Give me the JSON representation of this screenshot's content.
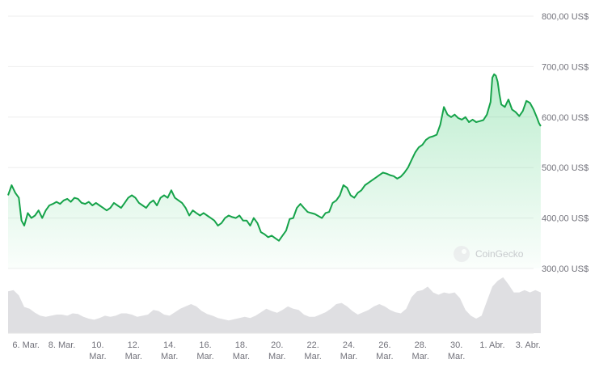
{
  "chart_data": {
    "type": "area",
    "y_tick_labels": [
      "800,00 US$",
      "700,00 US$",
      "600,00 US$",
      "500,00 US$",
      "400,00 US$",
      "300,00 US$"
    ],
    "y_ticks": [
      800,
      700,
      600,
      500,
      400,
      300
    ],
    "ylim": [
      300,
      800
    ],
    "x_tick_labels": [
      [
        "6. Mar."
      ],
      [
        "8. Mar."
      ],
      [
        "10.",
        "Mar."
      ],
      [
        "12.",
        "Mar."
      ],
      [
        "14.",
        "Mar."
      ],
      [
        "16.",
        "Mar."
      ],
      [
        "18.",
        "Mar."
      ],
      [
        "20.",
        "Mar."
      ],
      [
        "22.",
        "Mar."
      ],
      [
        "24.",
        "Mar."
      ],
      [
        "26.",
        "Mar."
      ],
      [
        "28.",
        "Mar."
      ],
      [
        "30.",
        "Mar."
      ],
      [
        "1. Abr."
      ],
      [
        "3. Abr."
      ]
    ],
    "x_tick_positions": [
      6,
      8,
      10,
      12,
      14,
      16,
      18,
      20,
      22,
      24,
      26,
      28,
      30,
      32,
      34
    ],
    "xlim": [
      5.0,
      34.3
    ],
    "watermark": "CoinGecko",
    "line_color": "#16a34a",
    "fill_color": "#22c55e",
    "grid": true,
    "series": [
      {
        "points": [
          [
            5.0,
            445
          ],
          [
            5.2,
            465
          ],
          [
            5.4,
            450
          ],
          [
            5.6,
            440
          ],
          [
            5.75,
            395
          ],
          [
            5.9,
            385
          ],
          [
            6.1,
            410
          ],
          [
            6.3,
            400
          ],
          [
            6.5,
            405
          ],
          [
            6.7,
            415
          ],
          [
            6.9,
            400
          ],
          [
            7.1,
            415
          ],
          [
            7.3,
            425
          ],
          [
            7.5,
            428
          ],
          [
            7.7,
            432
          ],
          [
            7.9,
            428
          ],
          [
            8.1,
            435
          ],
          [
            8.3,
            438
          ],
          [
            8.5,
            432
          ],
          [
            8.7,
            440
          ],
          [
            8.9,
            438
          ],
          [
            9.1,
            430
          ],
          [
            9.3,
            428
          ],
          [
            9.5,
            432
          ],
          [
            9.7,
            425
          ],
          [
            9.9,
            430
          ],
          [
            10.1,
            425
          ],
          [
            10.3,
            420
          ],
          [
            10.5,
            415
          ],
          [
            10.7,
            420
          ],
          [
            10.9,
            430
          ],
          [
            11.1,
            425
          ],
          [
            11.3,
            420
          ],
          [
            11.5,
            430
          ],
          [
            11.7,
            440
          ],
          [
            11.9,
            445
          ],
          [
            12.1,
            440
          ],
          [
            12.3,
            430
          ],
          [
            12.5,
            425
          ],
          [
            12.7,
            420
          ],
          [
            12.9,
            430
          ],
          [
            13.1,
            435
          ],
          [
            13.3,
            425
          ],
          [
            13.5,
            440
          ],
          [
            13.7,
            445
          ],
          [
            13.9,
            440
          ],
          [
            14.1,
            455
          ],
          [
            14.3,
            440
          ],
          [
            14.5,
            435
          ],
          [
            14.7,
            430
          ],
          [
            14.9,
            420
          ],
          [
            15.1,
            405
          ],
          [
            15.3,
            415
          ],
          [
            15.5,
            410
          ],
          [
            15.7,
            405
          ],
          [
            15.9,
            410
          ],
          [
            16.1,
            405
          ],
          [
            16.3,
            400
          ],
          [
            16.5,
            395
          ],
          [
            16.7,
            385
          ],
          [
            16.9,
            390
          ],
          [
            17.1,
            400
          ],
          [
            17.3,
            405
          ],
          [
            17.5,
            402
          ],
          [
            17.7,
            400
          ],
          [
            17.9,
            405
          ],
          [
            18.1,
            395
          ],
          [
            18.3,
            395
          ],
          [
            18.5,
            385
          ],
          [
            18.7,
            400
          ],
          [
            18.9,
            390
          ],
          [
            19.1,
            372
          ],
          [
            19.3,
            368
          ],
          [
            19.5,
            362
          ],
          [
            19.7,
            365
          ],
          [
            19.9,
            360
          ],
          [
            20.1,
            355
          ],
          [
            20.3,
            365
          ],
          [
            20.5,
            375
          ],
          [
            20.7,
            398
          ],
          [
            20.9,
            400
          ],
          [
            21.1,
            420
          ],
          [
            21.3,
            428
          ],
          [
            21.5,
            420
          ],
          [
            21.7,
            412
          ],
          [
            21.9,
            410
          ],
          [
            22.1,
            408
          ],
          [
            22.3,
            404
          ],
          [
            22.5,
            400
          ],
          [
            22.7,
            410
          ],
          [
            22.9,
            412
          ],
          [
            23.1,
            430
          ],
          [
            23.3,
            435
          ],
          [
            23.5,
            445
          ],
          [
            23.7,
            465
          ],
          [
            23.9,
            460
          ],
          [
            24.1,
            445
          ],
          [
            24.3,
            440
          ],
          [
            24.5,
            450
          ],
          [
            24.7,
            455
          ],
          [
            24.9,
            465
          ],
          [
            25.1,
            470
          ],
          [
            25.3,
            475
          ],
          [
            25.5,
            480
          ],
          [
            25.7,
            485
          ],
          [
            25.9,
            490
          ],
          [
            26.1,
            488
          ],
          [
            26.3,
            485
          ],
          [
            26.5,
            483
          ],
          [
            26.7,
            478
          ],
          [
            26.9,
            482
          ],
          [
            27.1,
            490
          ],
          [
            27.3,
            500
          ],
          [
            27.5,
            515
          ],
          [
            27.7,
            530
          ],
          [
            27.9,
            540
          ],
          [
            28.1,
            545
          ],
          [
            28.3,
            555
          ],
          [
            28.5,
            560
          ],
          [
            28.7,
            562
          ],
          [
            28.9,
            565
          ],
          [
            29.1,
            585
          ],
          [
            29.3,
            620
          ],
          [
            29.5,
            605
          ],
          [
            29.7,
            600
          ],
          [
            29.9,
            605
          ],
          [
            30.1,
            598
          ],
          [
            30.3,
            595
          ],
          [
            30.5,
            600
          ],
          [
            30.7,
            590
          ],
          [
            30.9,
            595
          ],
          [
            31.1,
            590
          ],
          [
            31.3,
            592
          ],
          [
            31.5,
            594
          ],
          [
            31.7,
            605
          ],
          [
            31.9,
            630
          ],
          [
            32.0,
            678
          ],
          [
            32.1,
            685
          ],
          [
            32.2,
            682
          ],
          [
            32.3,
            670
          ],
          [
            32.4,
            645
          ],
          [
            32.5,
            625
          ],
          [
            32.7,
            620
          ],
          [
            32.9,
            635
          ],
          [
            33.1,
            615
          ],
          [
            33.3,
            610
          ],
          [
            33.5,
            602
          ],
          [
            33.7,
            612
          ],
          [
            33.9,
            632
          ],
          [
            34.1,
            628
          ],
          [
            34.3,
            615
          ],
          [
            34.5,
            598
          ],
          [
            34.6,
            588
          ],
          [
            34.7,
            582
          ]
        ]
      }
    ],
    "volume": {
      "color": "#d4d4d8",
      "points": [
        [
          5.0,
          0.72
        ],
        [
          5.3,
          0.74
        ],
        [
          5.6,
          0.65
        ],
        [
          5.9,
          0.45
        ],
        [
          6.2,
          0.42
        ],
        [
          6.5,
          0.35
        ],
        [
          6.8,
          0.3
        ],
        [
          7.1,
          0.28
        ],
        [
          7.4,
          0.3
        ],
        [
          7.7,
          0.32
        ],
        [
          8.0,
          0.32
        ],
        [
          8.3,
          0.3
        ],
        [
          8.6,
          0.34
        ],
        [
          8.9,
          0.33
        ],
        [
          9.2,
          0.28
        ],
        [
          9.5,
          0.25
        ],
        [
          9.8,
          0.23
        ],
        [
          10.1,
          0.26
        ],
        [
          10.4,
          0.3
        ],
        [
          10.7,
          0.28
        ],
        [
          11.0,
          0.3
        ],
        [
          11.3,
          0.34
        ],
        [
          11.6,
          0.34
        ],
        [
          11.9,
          0.32
        ],
        [
          12.2,
          0.28
        ],
        [
          12.5,
          0.3
        ],
        [
          12.8,
          0.32
        ],
        [
          13.1,
          0.4
        ],
        [
          13.4,
          0.38
        ],
        [
          13.7,
          0.32
        ],
        [
          14.0,
          0.3
        ],
        [
          14.3,
          0.36
        ],
        [
          14.6,
          0.42
        ],
        [
          14.9,
          0.46
        ],
        [
          15.2,
          0.5
        ],
        [
          15.5,
          0.46
        ],
        [
          15.8,
          0.38
        ],
        [
          16.1,
          0.33
        ],
        [
          16.4,
          0.3
        ],
        [
          16.7,
          0.26
        ],
        [
          17.0,
          0.24
        ],
        [
          17.3,
          0.22
        ],
        [
          17.6,
          0.24
        ],
        [
          17.9,
          0.26
        ],
        [
          18.2,
          0.28
        ],
        [
          18.5,
          0.26
        ],
        [
          18.8,
          0.3
        ],
        [
          19.1,
          0.36
        ],
        [
          19.4,
          0.42
        ],
        [
          19.7,
          0.38
        ],
        [
          20.0,
          0.35
        ],
        [
          20.3,
          0.4
        ],
        [
          20.6,
          0.46
        ],
        [
          20.9,
          0.42
        ],
        [
          21.2,
          0.4
        ],
        [
          21.5,
          0.32
        ],
        [
          21.8,
          0.28
        ],
        [
          22.1,
          0.28
        ],
        [
          22.4,
          0.32
        ],
        [
          22.7,
          0.36
        ],
        [
          23.0,
          0.42
        ],
        [
          23.3,
          0.5
        ],
        [
          23.6,
          0.52
        ],
        [
          23.9,
          0.46
        ],
        [
          24.2,
          0.38
        ],
        [
          24.5,
          0.32
        ],
        [
          24.8,
          0.36
        ],
        [
          25.1,
          0.4
        ],
        [
          25.4,
          0.46
        ],
        [
          25.7,
          0.5
        ],
        [
          26.0,
          0.46
        ],
        [
          26.3,
          0.4
        ],
        [
          26.6,
          0.36
        ],
        [
          26.9,
          0.34
        ],
        [
          27.2,
          0.42
        ],
        [
          27.5,
          0.62
        ],
        [
          27.8,
          0.72
        ],
        [
          28.1,
          0.74
        ],
        [
          28.4,
          0.8
        ],
        [
          28.7,
          0.7
        ],
        [
          29.0,
          0.66
        ],
        [
          29.3,
          0.7
        ],
        [
          29.6,
          0.68
        ],
        [
          29.9,
          0.7
        ],
        [
          30.2,
          0.6
        ],
        [
          30.5,
          0.4
        ],
        [
          30.8,
          0.3
        ],
        [
          31.1,
          0.25
        ],
        [
          31.4,
          0.3
        ],
        [
          31.7,
          0.55
        ],
        [
          32.0,
          0.8
        ],
        [
          32.3,
          0.9
        ],
        [
          32.6,
          0.96
        ],
        [
          32.9,
          0.84
        ],
        [
          33.2,
          0.7
        ],
        [
          33.5,
          0.7
        ],
        [
          33.8,
          0.74
        ],
        [
          34.1,
          0.7
        ],
        [
          34.4,
          0.74
        ],
        [
          34.7,
          0.7
        ]
      ]
    }
  }
}
